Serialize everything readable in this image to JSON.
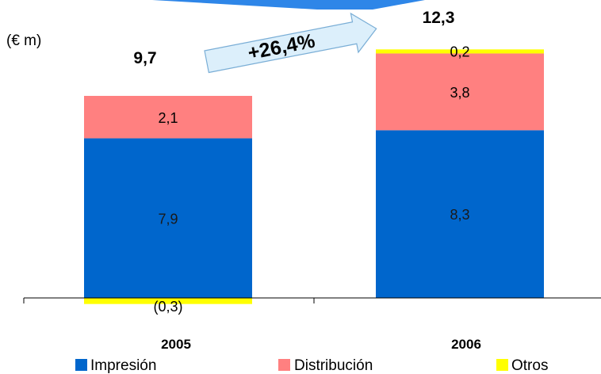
{
  "chart_data": {
    "type": "bar",
    "stacked": true,
    "unit_label": "(€ m)",
    "categories": [
      "2005",
      "2006"
    ],
    "totals": [
      "9,7",
      "12,3"
    ],
    "growth_label": "+26,4%",
    "series": [
      {
        "name": "Impresión",
        "color": "#0066CC",
        "values": [
          7.9,
          8.3
        ],
        "labels": [
          "7,9",
          "8,3"
        ]
      },
      {
        "name": "Distribución",
        "color": "#FF8080",
        "values": [
          2.1,
          3.8
        ],
        "labels": [
          "2,1",
          "3,8"
        ]
      },
      {
        "name": "Otros",
        "color": "#FFFF00",
        "values": [
          -0.3,
          0.2
        ],
        "labels": [
          "(0,3)",
          "0,2"
        ]
      }
    ],
    "legend_placement": "bottom",
    "grid": false
  }
}
